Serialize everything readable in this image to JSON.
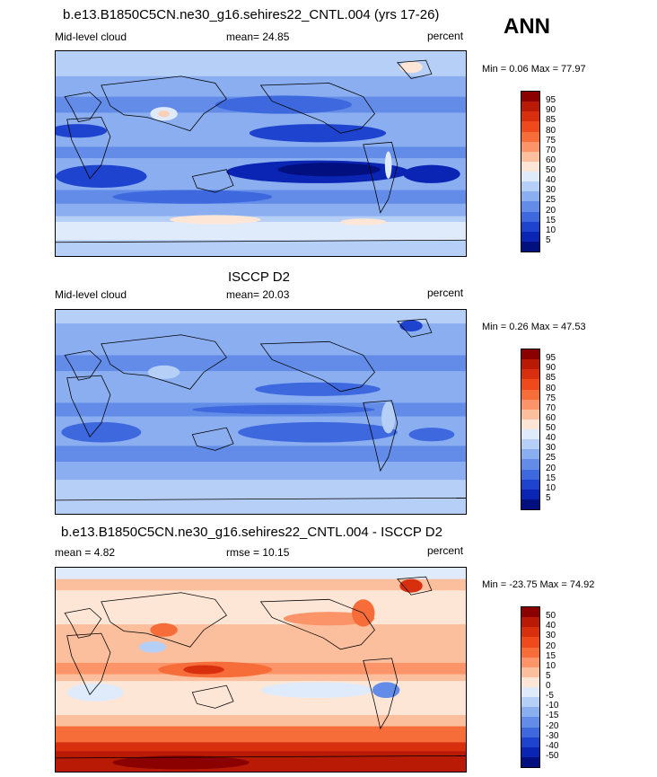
{
  "season": "ANN",
  "panels": [
    {
      "title": "b.e13.B1850C5CN.ne30_g16.sehires22_CNTL.004 (yrs 17-26)",
      "left_label": "Mid-level cloud",
      "center_label": "mean=  24.85",
      "right_label": "percent",
      "minmax": "Min =   0.06 Max =  77.97",
      "colorbar_labels": [
        "95",
        "90",
        "85",
        "80",
        "75",
        "70",
        "60",
        "50",
        "40",
        "30",
        "25",
        "20",
        "15",
        "10",
        "5"
      ],
      "colorbar_colors": [
        "#8b0000",
        "#b81a06",
        "#d8300f",
        "#ee4a1b",
        "#f76d3a",
        "#fb9468",
        "#fcbf9d",
        "#fde6d6",
        "#dfebfb",
        "#b5cff6",
        "#8aaef0",
        "#628ce8",
        "#3d68de",
        "#1e44cf",
        "#0a24b3",
        "#020f7e"
      ],
      "map_kind": "model"
    },
    {
      "title": "ISCCP D2",
      "left_label": "Mid-level cloud",
      "center_label": "mean=  20.03",
      "right_label": "percent",
      "minmax": "Min =   0.26 Max =  47.53",
      "colorbar_labels": [
        "95",
        "90",
        "85",
        "80",
        "75",
        "70",
        "60",
        "50",
        "40",
        "30",
        "25",
        "20",
        "15",
        "10",
        "5"
      ],
      "colorbar_colors": [
        "#8b0000",
        "#b81a06",
        "#d8300f",
        "#ee4a1b",
        "#f76d3a",
        "#fb9468",
        "#fcbf9d",
        "#fde6d6",
        "#dfebfb",
        "#b5cff6",
        "#8aaef0",
        "#628ce8",
        "#3d68de",
        "#1e44cf",
        "#0a24b3",
        "#020f7e"
      ],
      "map_kind": "obs"
    },
    {
      "title": "b.e13.B1850C5CN.ne30_g16.sehires22_CNTL.004 - ISCCP D2",
      "left_label": "mean =   4.82",
      "center_label": "rmse =  10.15",
      "right_label": "percent",
      "minmax": "Min = -23.75 Max =  74.92",
      "colorbar_labels": [
        "50",
        "40",
        "30",
        "20",
        "15",
        "10",
        "5",
        "0",
        "-5",
        "-10",
        "-15",
        "-20",
        "-30",
        "-40",
        "-50"
      ],
      "colorbar_colors": [
        "#8b0000",
        "#b81a06",
        "#d8300f",
        "#ee4a1b",
        "#f76d3a",
        "#fb9468",
        "#fcbf9d",
        "#fde6d6",
        "#dfebfb",
        "#b5cff6",
        "#8aaef0",
        "#628ce8",
        "#3d68de",
        "#1e44cf",
        "#0a24b3",
        "#020f7e"
      ],
      "map_kind": "diff"
    }
  ]
}
